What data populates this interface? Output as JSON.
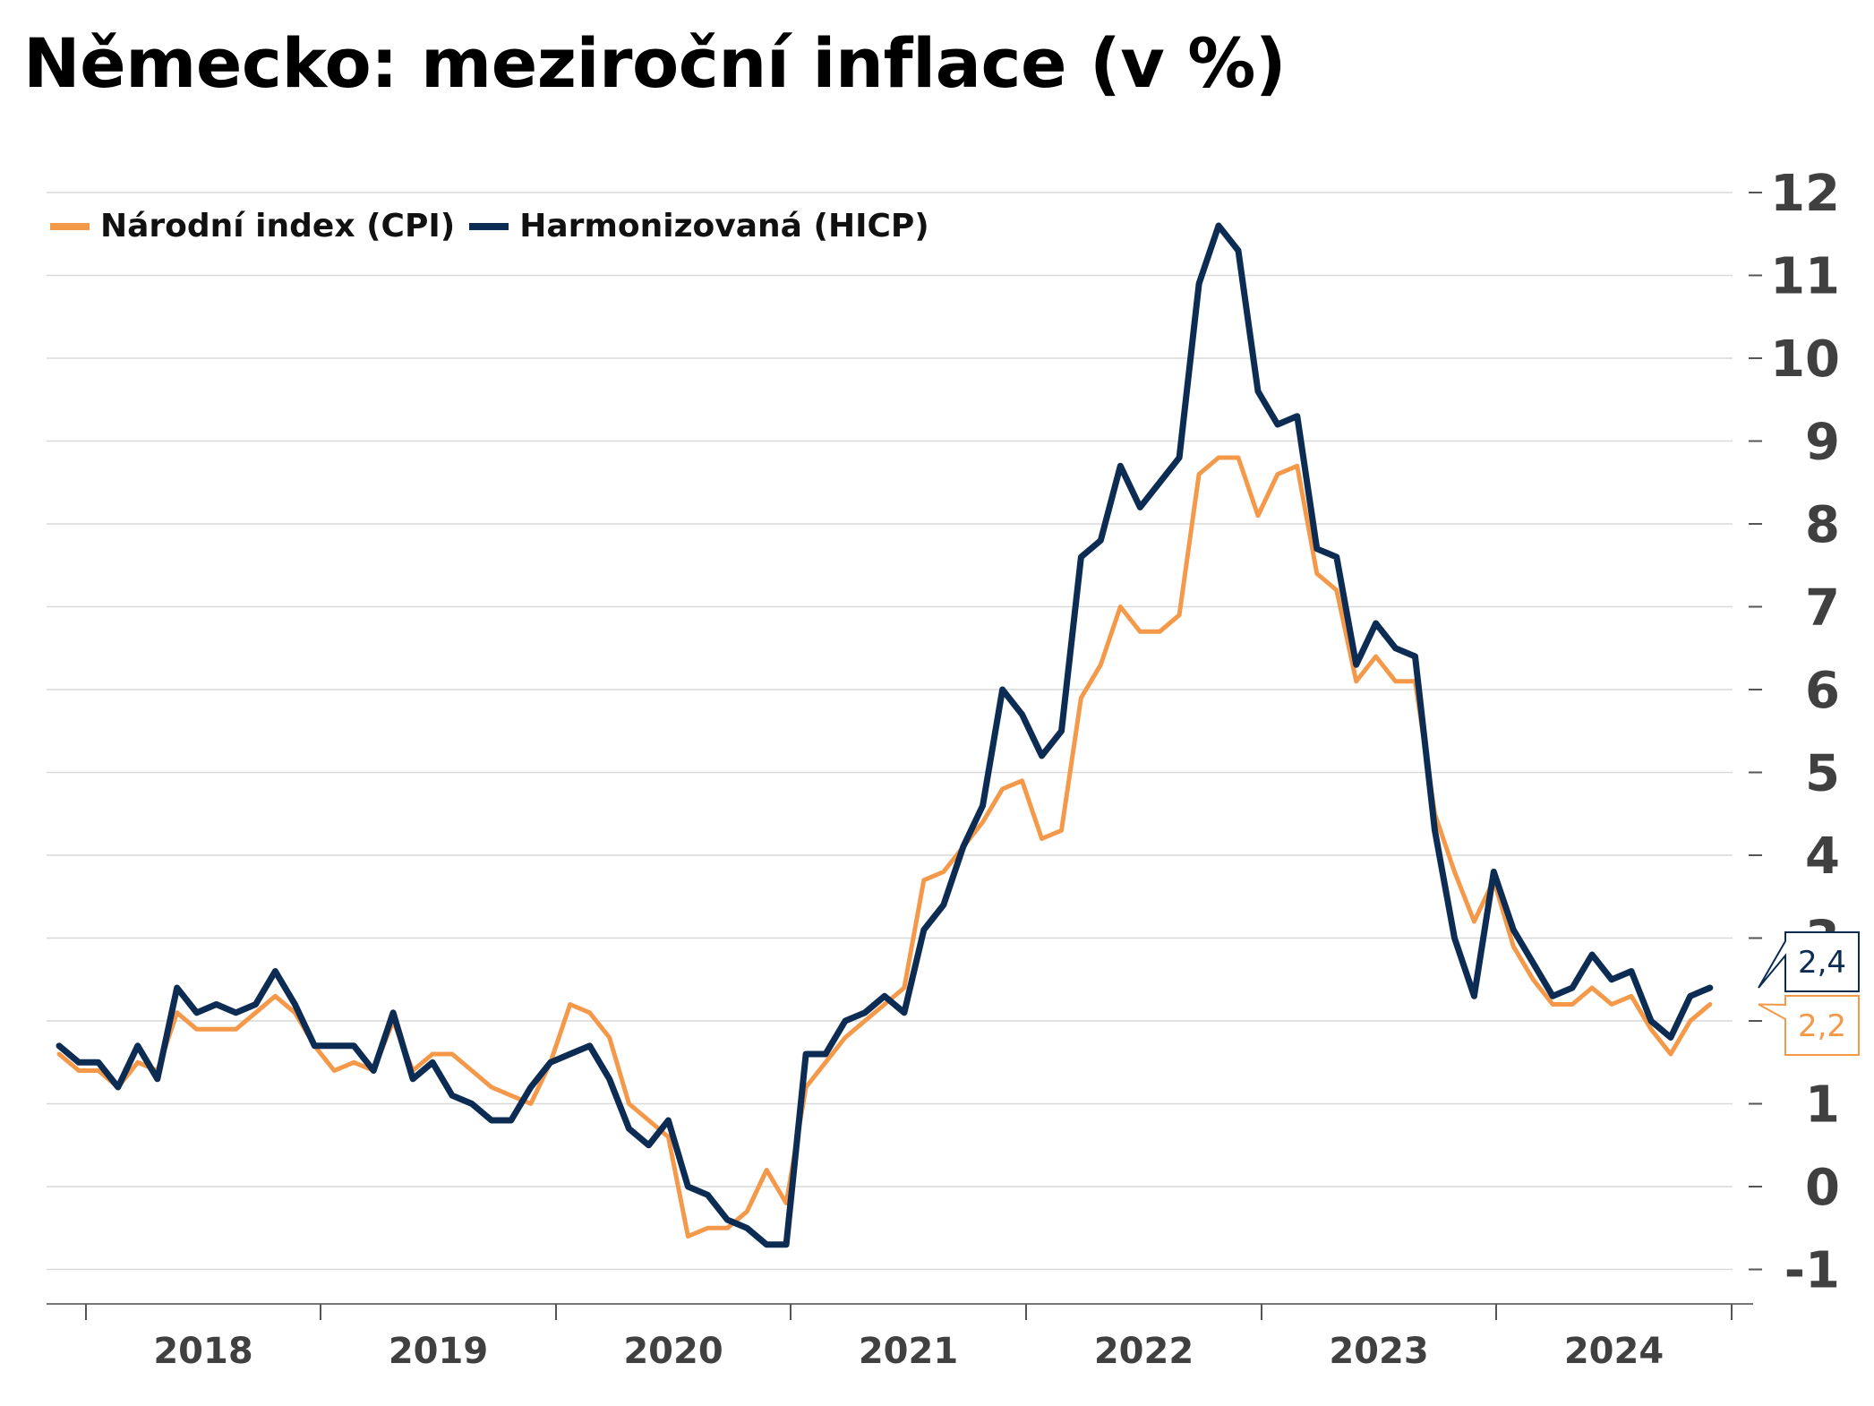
{
  "title": "Německo: meziroční inflace (v %)",
  "legend": [
    {
      "label": "Národní index (CPI)",
      "color": "#f4994a"
    },
    {
      "label": "Harmonizovaná (HICP)",
      "color": "#0d2c54"
    }
  ],
  "chart_data": {
    "type": "line",
    "title": "Německo: meziroční inflace (v %)",
    "xlabel": "",
    "ylabel": "",
    "ylim": [
      -1.4,
      12.3
    ],
    "yticks": [
      -1,
      0,
      1,
      2,
      3,
      4,
      5,
      6,
      7,
      8,
      9,
      10,
      11,
      12
    ],
    "xticks": [
      "2018",
      "2019",
      "2020",
      "2021",
      "2022",
      "2023",
      "2024"
    ],
    "x_start": "2018-01",
    "grid": true,
    "legend_position": "top-left",
    "y_axis_position": "right",
    "series": [
      {
        "name": "Národní index (CPI)",
        "color": "#f4994a",
        "end_label": "2,2",
        "values": [
          1.6,
          1.4,
          1.4,
          1.2,
          1.5,
          1.4,
          2.1,
          1.9,
          1.9,
          1.9,
          2.1,
          2.3,
          2.1,
          1.7,
          1.4,
          1.5,
          1.4,
          2.0,
          1.4,
          1.6,
          1.6,
          1.4,
          1.2,
          1.1,
          1.0,
          1.5,
          2.2,
          2.1,
          1.8,
          1.0,
          0.8,
          0.6,
          -0.6,
          -0.5,
          -0.5,
          -0.3,
          0.2,
          -0.2,
          1.2,
          1.5,
          1.8,
          2.0,
          2.2,
          2.4,
          3.7,
          3.8,
          4.1,
          4.4,
          4.8,
          4.9,
          4.2,
          4.3,
          5.9,
          6.3,
          7.0,
          6.7,
          6.7,
          6.9,
          8.6,
          8.8,
          8.8,
          8.1,
          8.6,
          8.7,
          7.4,
          7.2,
          6.1,
          6.4,
          6.1,
          6.1,
          4.5,
          3.8,
          3.2,
          3.7,
          2.9,
          2.5,
          2.2,
          2.2,
          2.4,
          2.2,
          2.3,
          1.9,
          1.6,
          2.0,
          2.2
        ],
        "color_note": "orange"
      },
      {
        "name": "Harmonizovaná (HICP)",
        "color": "#0d2c54",
        "end_label": "2,4",
        "values": [
          1.7,
          1.5,
          1.5,
          1.2,
          1.7,
          1.3,
          2.4,
          2.1,
          2.2,
          2.1,
          2.2,
          2.6,
          2.2,
          1.7,
          1.7,
          1.7,
          1.4,
          2.1,
          1.3,
          1.5,
          1.1,
          1.0,
          0.8,
          0.8,
          1.2,
          1.5,
          1.6,
          1.7,
          1.3,
          0.7,
          0.5,
          0.8,
          0.0,
          -0.1,
          -0.4,
          -0.5,
          -0.7,
          -0.7,
          1.6,
          1.6,
          2.0,
          2.1,
          2.3,
          2.1,
          3.1,
          3.4,
          4.1,
          4.6,
          6.0,
          5.7,
          5.2,
          5.5,
          7.6,
          7.8,
          8.7,
          8.2,
          8.5,
          8.8,
          10.9,
          11.6,
          11.3,
          9.6,
          9.2,
          9.3,
          7.7,
          7.6,
          6.3,
          6.8,
          6.5,
          6.4,
          4.3,
          3.0,
          2.3,
          3.8,
          3.1,
          2.7,
          2.3,
          2.4,
          2.8,
          2.5,
          2.6,
          2.0,
          1.8,
          2.3,
          2.4
        ]
      }
    ]
  }
}
